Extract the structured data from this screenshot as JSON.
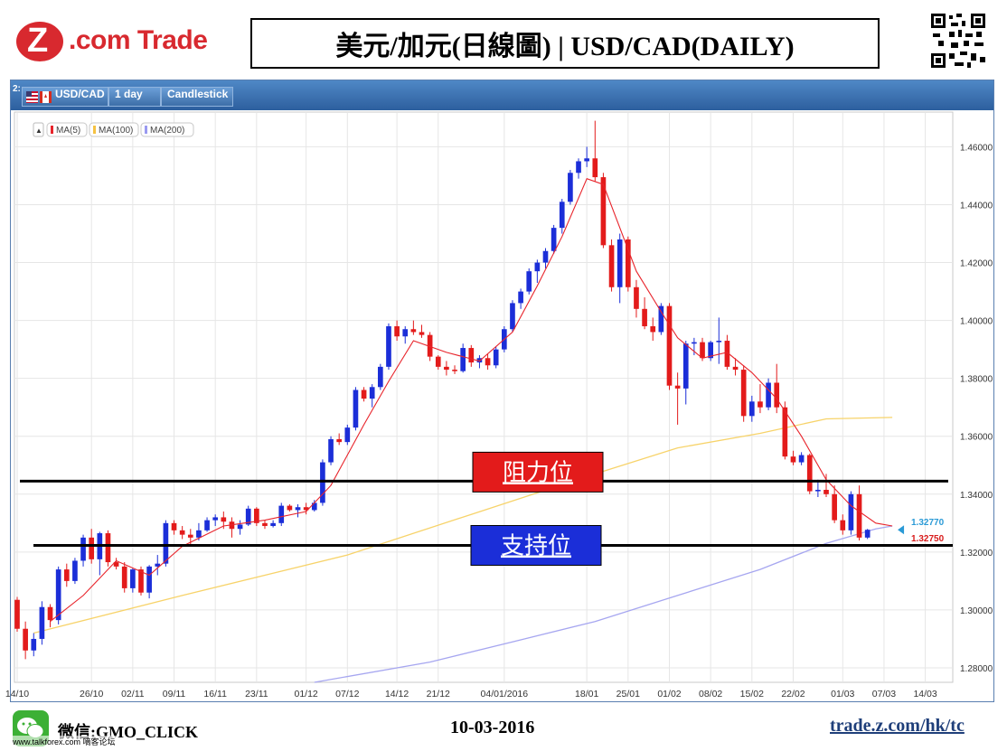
{
  "header": {
    "logo_text": "Z.com Trade",
    "title": "美元/加元(日線圖) | USD/CAD(DAILY)"
  },
  "toolbar": {
    "panel_number": "2:",
    "symbol": "USD/CAD",
    "timeframe": "1 day",
    "chart_style": "Candlestick"
  },
  "legend": {
    "items": [
      {
        "label": "MA(5)",
        "color": "#e8242b"
      },
      {
        "label": "MA(100)",
        "color": "#f5c242"
      },
      {
        "label": "MA(200)",
        "color": "#9a9af0"
      }
    ]
  },
  "annotations": {
    "resistance_label": "阻力位",
    "support_label": "支持位",
    "price_tag_blue": "1.32770",
    "price_tag_red": "1.32750"
  },
  "footer": {
    "wechat": "微信:GMO_CLICK",
    "watermark": "www.talkforex.com 嘀客论坛",
    "date": "10-03-2016",
    "url": "trade.z.com/hk/tc"
  },
  "colors": {
    "up": "#1b2ed8",
    "down": "#e31b1b",
    "ma5": "#e8242b",
    "ma100": "#f7d36a",
    "ma200": "#a6a6f0",
    "grid": "#e6e6e6",
    "resistance_box": "#e31b1b",
    "support_box": "#1b2ed8"
  },
  "chart_data": {
    "type": "candlestick",
    "title": "美元/加元(日線圖) | USD/CAD(DAILY)",
    "symbol": "USD/CAD",
    "timeframe": "1 day",
    "ylim": [
      1.275,
      1.472
    ],
    "y_ticks": [
      "1.28000",
      "1.30000",
      "1.32000",
      "1.34000",
      "1.36000",
      "1.38000",
      "1.40000",
      "1.42000",
      "1.44000",
      "1.46000"
    ],
    "x_ticks": [
      "14/10",
      "26/10",
      "02/11",
      "09/11",
      "16/11",
      "23/11",
      "01/12",
      "07/12",
      "14/12",
      "21/12",
      "04/01/2016",
      "18/01",
      "25/01",
      "01/02",
      "08/02",
      "15/02",
      "22/02",
      "01/03",
      "07/03",
      "14/03"
    ],
    "x_tick_index": [
      0,
      9,
      14,
      19,
      24,
      29,
      35,
      40,
      46,
      51,
      59,
      69,
      74,
      79,
      84,
      89,
      94,
      100,
      105,
      110
    ],
    "resistance_level": 1.3445,
    "support_level": 1.3223,
    "candles": [
      {
        "o": 1.3035,
        "h": 1.3045,
        "l": 1.2925,
        "c": 1.2935
      },
      {
        "o": 1.2935,
        "h": 1.296,
        "l": 1.283,
        "c": 1.286
      },
      {
        "o": 1.286,
        "h": 1.292,
        "l": 1.284,
        "c": 1.29
      },
      {
        "o": 1.29,
        "h": 1.303,
        "l": 1.288,
        "c": 1.301
      },
      {
        "o": 1.301,
        "h": 1.302,
        "l": 1.294,
        "c": 1.2965
      },
      {
        "o": 1.2965,
        "h": 1.315,
        "l": 1.295,
        "c": 1.314
      },
      {
        "o": 1.314,
        "h": 1.316,
        "l": 1.308,
        "c": 1.31
      },
      {
        "o": 1.31,
        "h": 1.318,
        "l": 1.309,
        "c": 1.317
      },
      {
        "o": 1.317,
        "h": 1.326,
        "l": 1.315,
        "c": 1.325
      },
      {
        "o": 1.325,
        "h": 1.328,
        "l": 1.316,
        "c": 1.3175
      },
      {
        "o": 1.3175,
        "h": 1.327,
        "l": 1.312,
        "c": 1.3265
      },
      {
        "o": 1.3265,
        "h": 1.3275,
        "l": 1.315,
        "c": 1.3165
      },
      {
        "o": 1.3165,
        "h": 1.318,
        "l": 1.314,
        "c": 1.315
      },
      {
        "o": 1.315,
        "h": 1.3165,
        "l": 1.306,
        "c": 1.3075
      },
      {
        "o": 1.3075,
        "h": 1.3145,
        "l": 1.306,
        "c": 1.314
      },
      {
        "o": 1.314,
        "h": 1.315,
        "l": 1.305,
        "c": 1.306
      },
      {
        "o": 1.306,
        "h": 1.3155,
        "l": 1.304,
        "c": 1.315
      },
      {
        "o": 1.315,
        "h": 1.319,
        "l": 1.312,
        "c": 1.316
      },
      {
        "o": 1.316,
        "h": 1.331,
        "l": 1.315,
        "c": 1.33
      },
      {
        "o": 1.33,
        "h": 1.331,
        "l": 1.326,
        "c": 1.3275
      },
      {
        "o": 1.3275,
        "h": 1.329,
        "l": 1.3245,
        "c": 1.326
      },
      {
        "o": 1.326,
        "h": 1.328,
        "l": 1.3225,
        "c": 1.325
      },
      {
        "o": 1.325,
        "h": 1.33,
        "l": 1.324,
        "c": 1.3275
      },
      {
        "o": 1.3275,
        "h": 1.332,
        "l": 1.327,
        "c": 1.331
      },
      {
        "o": 1.331,
        "h": 1.333,
        "l": 1.329,
        "c": 1.332
      },
      {
        "o": 1.332,
        "h": 1.334,
        "l": 1.328,
        "c": 1.3305
      },
      {
        "o": 1.3305,
        "h": 1.332,
        "l": 1.325,
        "c": 1.328
      },
      {
        "o": 1.328,
        "h": 1.331,
        "l": 1.326,
        "c": 1.3295
      },
      {
        "o": 1.3295,
        "h": 1.336,
        "l": 1.329,
        "c": 1.335
      },
      {
        "o": 1.335,
        "h": 1.3355,
        "l": 1.329,
        "c": 1.33
      },
      {
        "o": 1.33,
        "h": 1.331,
        "l": 1.328,
        "c": 1.329
      },
      {
        "o": 1.329,
        "h": 1.331,
        "l": 1.3285,
        "c": 1.33
      },
      {
        "o": 1.33,
        "h": 1.337,
        "l": 1.329,
        "c": 1.336
      },
      {
        "o": 1.336,
        "h": 1.3365,
        "l": 1.334,
        "c": 1.3345
      },
      {
        "o": 1.3345,
        "h": 1.3365,
        "l": 1.332,
        "c": 1.3355
      },
      {
        "o": 1.3355,
        "h": 1.337,
        "l": 1.333,
        "c": 1.3345
      },
      {
        "o": 1.3345,
        "h": 1.338,
        "l": 1.334,
        "c": 1.337
      },
      {
        "o": 1.337,
        "h": 1.352,
        "l": 1.336,
        "c": 1.351
      },
      {
        "o": 1.351,
        "h": 1.36,
        "l": 1.35,
        "c": 1.359
      },
      {
        "o": 1.359,
        "h": 1.361,
        "l": 1.357,
        "c": 1.358
      },
      {
        "o": 1.358,
        "h": 1.364,
        "l": 1.357,
        "c": 1.363
      },
      {
        "o": 1.363,
        "h": 1.377,
        "l": 1.362,
        "c": 1.376
      },
      {
        "o": 1.376,
        "h": 1.377,
        "l": 1.372,
        "c": 1.373
      },
      {
        "o": 1.373,
        "h": 1.378,
        "l": 1.37,
        "c": 1.377
      },
      {
        "o": 1.377,
        "h": 1.385,
        "l": 1.376,
        "c": 1.384
      },
      {
        "o": 1.384,
        "h": 1.399,
        "l": 1.383,
        "c": 1.398
      },
      {
        "o": 1.398,
        "h": 1.4,
        "l": 1.393,
        "c": 1.3945
      },
      {
        "o": 1.3945,
        "h": 1.398,
        "l": 1.392,
        "c": 1.397
      },
      {
        "o": 1.397,
        "h": 1.4,
        "l": 1.395,
        "c": 1.396
      },
      {
        "o": 1.396,
        "h": 1.3985,
        "l": 1.394,
        "c": 1.395
      },
      {
        "o": 1.395,
        "h": 1.396,
        "l": 1.386,
        "c": 1.3875
      },
      {
        "o": 1.3875,
        "h": 1.388,
        "l": 1.383,
        "c": 1.384
      },
      {
        "o": 1.384,
        "h": 1.386,
        "l": 1.381,
        "c": 1.383
      },
      {
        "o": 1.383,
        "h": 1.3845,
        "l": 1.3815,
        "c": 1.3825
      },
      {
        "o": 1.3825,
        "h": 1.392,
        "l": 1.382,
        "c": 1.3905
      },
      {
        "o": 1.3905,
        "h": 1.3915,
        "l": 1.384,
        "c": 1.3855
      },
      {
        "o": 1.3855,
        "h": 1.388,
        "l": 1.3835,
        "c": 1.387
      },
      {
        "o": 1.387,
        "h": 1.3885,
        "l": 1.383,
        "c": 1.3845
      },
      {
        "o": 1.3845,
        "h": 1.391,
        "l": 1.3835,
        "c": 1.39
      },
      {
        "o": 1.39,
        "h": 1.398,
        "l": 1.389,
        "c": 1.397
      },
      {
        "o": 1.397,
        "h": 1.407,
        "l": 1.396,
        "c": 1.406
      },
      {
        "o": 1.406,
        "h": 1.411,
        "l": 1.404,
        "c": 1.41
      },
      {
        "o": 1.41,
        "h": 1.418,
        "l": 1.409,
        "c": 1.417
      },
      {
        "o": 1.417,
        "h": 1.421,
        "l": 1.413,
        "c": 1.42
      },
      {
        "o": 1.42,
        "h": 1.425,
        "l": 1.418,
        "c": 1.424
      },
      {
        "o": 1.424,
        "h": 1.433,
        "l": 1.423,
        "c": 1.432
      },
      {
        "o": 1.432,
        "h": 1.442,
        "l": 1.43,
        "c": 1.441
      },
      {
        "o": 1.441,
        "h": 1.452,
        "l": 1.44,
        "c": 1.451
      },
      {
        "o": 1.451,
        "h": 1.456,
        "l": 1.449,
        "c": 1.455
      },
      {
        "o": 1.455,
        "h": 1.46,
        "l": 1.453,
        "c": 1.456
      },
      {
        "o": 1.456,
        "h": 1.469,
        "l": 1.448,
        "c": 1.4495
      },
      {
        "o": 1.4495,
        "h": 1.451,
        "l": 1.425,
        "c": 1.426
      },
      {
        "o": 1.426,
        "h": 1.428,
        "l": 1.41,
        "c": 1.4115
      },
      {
        "o": 1.4115,
        "h": 1.43,
        "l": 1.406,
        "c": 1.428
      },
      {
        "o": 1.428,
        "h": 1.429,
        "l": 1.41,
        "c": 1.4115
      },
      {
        "o": 1.4115,
        "h": 1.414,
        "l": 1.401,
        "c": 1.404
      },
      {
        "o": 1.404,
        "h": 1.408,
        "l": 1.397,
        "c": 1.398
      },
      {
        "o": 1.398,
        "h": 1.401,
        "l": 1.393,
        "c": 1.396
      },
      {
        "o": 1.396,
        "h": 1.406,
        "l": 1.395,
        "c": 1.405
      },
      {
        "o": 1.405,
        "h": 1.406,
        "l": 1.376,
        "c": 1.3775
      },
      {
        "o": 1.3775,
        "h": 1.382,
        "l": 1.364,
        "c": 1.3765
      },
      {
        "o": 1.3765,
        "h": 1.393,
        "l": 1.371,
        "c": 1.392
      },
      {
        "o": 1.392,
        "h": 1.394,
        "l": 1.388,
        "c": 1.3925
      },
      {
        "o": 1.3925,
        "h": 1.394,
        "l": 1.386,
        "c": 1.387
      },
      {
        "o": 1.387,
        "h": 1.393,
        "l": 1.386,
        "c": 1.3925
      },
      {
        "o": 1.3925,
        "h": 1.401,
        "l": 1.385,
        "c": 1.393
      },
      {
        "o": 1.393,
        "h": 1.395,
        "l": 1.383,
        "c": 1.384
      },
      {
        "o": 1.384,
        "h": 1.387,
        "l": 1.381,
        "c": 1.383
      },
      {
        "o": 1.383,
        "h": 1.3845,
        "l": 1.365,
        "c": 1.367
      },
      {
        "o": 1.367,
        "h": 1.374,
        "l": 1.365,
        "c": 1.372
      },
      {
        "o": 1.372,
        "h": 1.378,
        "l": 1.368,
        "c": 1.37
      },
      {
        "o": 1.37,
        "h": 1.38,
        "l": 1.369,
        "c": 1.3785
      },
      {
        "o": 1.3785,
        "h": 1.385,
        "l": 1.368,
        "c": 1.37
      },
      {
        "o": 1.37,
        "h": 1.372,
        "l": 1.352,
        "c": 1.353
      },
      {
        "o": 1.353,
        "h": 1.355,
        "l": 1.35,
        "c": 1.351
      },
      {
        "o": 1.351,
        "h": 1.3545,
        "l": 1.35,
        "c": 1.3535
      },
      {
        "o": 1.3535,
        "h": 1.354,
        "l": 1.34,
        "c": 1.341
      },
      {
        "o": 1.341,
        "h": 1.345,
        "l": 1.339,
        "c": 1.3415
      },
      {
        "o": 1.3415,
        "h": 1.347,
        "l": 1.339,
        "c": 1.34
      },
      {
        "o": 1.34,
        "h": 1.343,
        "l": 1.33,
        "c": 1.331
      },
      {
        "o": 1.331,
        "h": 1.333,
        "l": 1.326,
        "c": 1.3275
      },
      {
        "o": 1.3275,
        "h": 1.341,
        "l": 1.326,
        "c": 1.34
      },
      {
        "o": 1.34,
        "h": 1.343,
        "l": 1.324,
        "c": 1.325
      },
      {
        "o": 1.325,
        "h": 1.328,
        "l": 1.3245,
        "c": 1.3277
      }
    ],
    "ma5": [
      [
        4,
        1.296
      ],
      [
        8,
        1.305
      ],
      [
        12,
        1.317
      ],
      [
        16,
        1.312
      ],
      [
        20,
        1.322
      ],
      [
        25,
        1.329
      ],
      [
        30,
        1.331
      ],
      [
        35,
        1.334
      ],
      [
        38,
        1.343
      ],
      [
        42,
        1.364
      ],
      [
        45,
        1.379
      ],
      [
        48,
        1.393
      ],
      [
        52,
        1.389
      ],
      [
        56,
        1.386
      ],
      [
        60,
        1.396
      ],
      [
        63,
        1.412
      ],
      [
        66,
        1.429
      ],
      [
        69,
        1.449
      ],
      [
        71,
        1.447
      ],
      [
        73,
        1.432
      ],
      [
        75,
        1.417
      ],
      [
        78,
        1.403
      ],
      [
        80,
        1.394
      ],
      [
        83,
        1.387
      ],
      [
        86,
        1.389
      ],
      [
        89,
        1.382
      ],
      [
        92,
        1.373
      ],
      [
        95,
        1.36
      ],
      [
        98,
        1.345
      ],
      [
        101,
        1.336
      ],
      [
        104,
        1.33
      ],
      [
        106,
        1.329
      ]
    ],
    "ma100": [
      [
        2,
        1.292
      ],
      [
        20,
        1.305
      ],
      [
        40,
        1.319
      ],
      [
        55,
        1.333
      ],
      [
        70,
        1.347
      ],
      [
        80,
        1.356
      ],
      [
        90,
        1.361
      ],
      [
        98,
        1.366
      ],
      [
        106,
        1.3665
      ]
    ],
    "ma200": [
      [
        36,
        1.275
      ],
      [
        50,
        1.282
      ],
      [
        60,
        1.289
      ],
      [
        70,
        1.296
      ],
      [
        80,
        1.305
      ],
      [
        90,
        1.314
      ],
      [
        98,
        1.323
      ],
      [
        104,
        1.328
      ],
      [
        106,
        1.329
      ]
    ]
  }
}
